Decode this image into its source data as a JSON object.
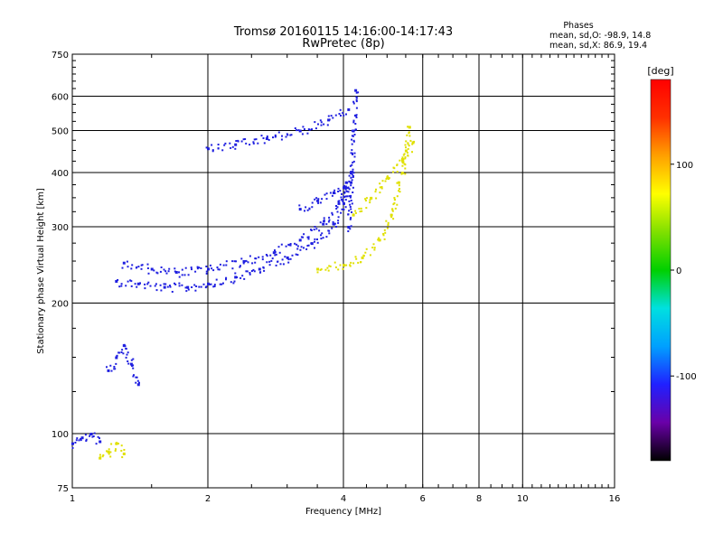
{
  "header": {
    "title_line1": "Tromsø 20160115 14:16:00-14:17:43",
    "title_line2": "RwPretec (8p)"
  },
  "stats": {
    "title": "Phases",
    "line_o": "mean, sd,O: -98.9, 14.8",
    "line_x": "mean, sd,X:  86.9, 19.4"
  },
  "chart_data": {
    "type": "scatter",
    "xlabel": "Frequency [MHz]",
    "ylabel": "Stationary phase Virtual Height [km]",
    "xscale": "log",
    "yscale": "log",
    "xlim": [
      1,
      16
    ],
    "ylim": [
      75,
      750
    ],
    "xticks": [
      1,
      2,
      4,
      6,
      8,
      10,
      16
    ],
    "xtick_labels": [
      "1",
      "2",
      "4",
      "6",
      "8",
      "10",
      "16"
    ],
    "yticks": [
      75,
      100,
      200,
      300,
      400,
      500,
      600,
      750
    ],
    "ytick_labels": [
      "75",
      "100",
      "200",
      "300",
      "400",
      "500",
      "600",
      "750"
    ],
    "grid": true,
    "colorbar": {
      "label": "[deg]",
      "range": [
        -180,
        180
      ],
      "ticks": [
        100,
        0,
        -100
      ],
      "tick_labels": [
        "100",
        "0",
        "-100"
      ],
      "colors": [
        "#000000",
        "#6a00a8",
        "#2020ff",
        "#00a0ff",
        "#00e0e0",
        "#00d000",
        "#80e000",
        "#ffff00",
        "#ffa000",
        "#ff3000",
        "#ff0000"
      ]
    },
    "series": [
      {
        "name": "O",
        "color": "#2020e0",
        "mean_phase": -98.9,
        "traces": [
          {
            "x": [
              1.25,
              1.4,
              1.6,
              1.8,
              2.0,
              2.3,
              2.6,
              3.0,
              3.4,
              3.8,
              4.0,
              4.15
            ],
            "y": [
              225,
              222,
              218,
              218,
              222,
              230,
              240,
              255,
              275,
              305,
              340,
              400
            ]
          },
          {
            "x": [
              1.3,
              1.5,
              1.7,
              2.0,
              2.4,
              2.8,
              3.2,
              3.6,
              3.9,
              4.05
            ],
            "y": [
              248,
              240,
              236,
              240,
              250,
              262,
              280,
              305,
              340,
              380
            ]
          },
          {
            "x": [
              4.1,
              4.15,
              4.2,
              4.25
            ],
            "y": [
              300,
              400,
              500,
              620
            ]
          },
          {
            "x": [
              3.2,
              3.5,
              3.8,
              4.0,
              4.15
            ],
            "y": [
              330,
              345,
              360,
              370,
              380
            ]
          },
          {
            "x": [
              2.0,
              2.3,
              2.7,
              3.2,
              3.7,
              4.1
            ],
            "y": [
              455,
              465,
              480,
              500,
              530,
              560
            ]
          },
          {
            "x": [
              1.2,
              1.25,
              1.3,
              1.35,
              1.4
            ],
            "y": [
              140,
              150,
              160,
              145,
              130
            ]
          },
          {
            "x": [
              1.0,
              1.05,
              1.1,
              1.15
            ],
            "y": [
              95,
              98,
              100,
              96
            ]
          }
        ]
      },
      {
        "name": "X",
        "color": "#e0e000",
        "mean_phase": 86.9,
        "traces": [
          {
            "x": [
              3.5,
              4.0,
              4.4,
              4.8,
              5.1,
              5.3
            ],
            "y": [
              240,
              245,
              255,
              280,
              320,
              380
            ]
          },
          {
            "x": [
              4.2,
              4.6,
              5.0,
              5.4,
              5.7
            ],
            "y": [
              320,
              350,
              390,
              430,
              470
            ]
          },
          {
            "x": [
              5.4,
              5.5,
              5.6
            ],
            "y": [
              400,
              450,
              510
            ]
          },
          {
            "x": [
              1.15,
              1.2,
              1.25,
              1.3
            ],
            "y": [
              88,
              91,
              95,
              90
            ]
          }
        ]
      }
    ]
  }
}
